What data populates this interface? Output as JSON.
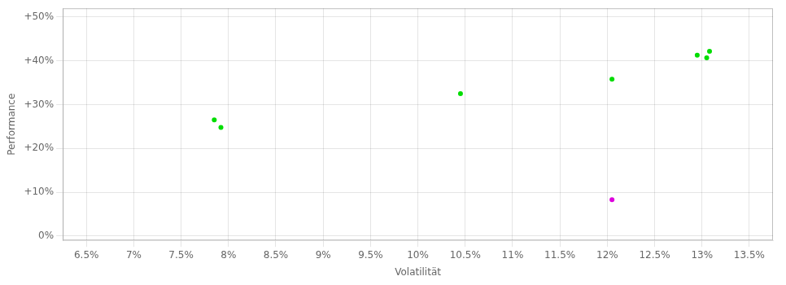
{
  "chart_data": {
    "type": "scatter",
    "xlabel": "Volatilität",
    "ylabel": "Performance",
    "xlim": [
      0.0625,
      0.1375
    ],
    "ylim": [
      -0.01,
      0.52
    ],
    "xticks": [
      {
        "value": 0.065,
        "label": "6.5%"
      },
      {
        "value": 0.07,
        "label": "7%"
      },
      {
        "value": 0.075,
        "label": "7.5%"
      },
      {
        "value": 0.08,
        "label": "8%"
      },
      {
        "value": 0.085,
        "label": "8.5%"
      },
      {
        "value": 0.09,
        "label": "9%"
      },
      {
        "value": 0.095,
        "label": "9.5%"
      },
      {
        "value": 0.1,
        "label": "10%"
      },
      {
        "value": 0.105,
        "label": "10.5%"
      },
      {
        "value": 0.11,
        "label": "11%"
      },
      {
        "value": 0.115,
        "label": "11.5%"
      },
      {
        "value": 0.12,
        "label": "12%"
      },
      {
        "value": 0.125,
        "label": "12.5%"
      },
      {
        "value": 0.13,
        "label": "13%"
      },
      {
        "value": 0.135,
        "label": "13.5%"
      }
    ],
    "yticks": [
      {
        "value": 0.0,
        "label": "0%"
      },
      {
        "value": 0.1,
        "label": "+10%"
      },
      {
        "value": 0.2,
        "label": "+20%"
      },
      {
        "value": 0.3,
        "label": "+30%"
      },
      {
        "value": 0.4,
        "label": "+40%"
      },
      {
        "value": 0.5,
        "label": "+50%"
      }
    ],
    "grid": true,
    "series": [
      {
        "color": "#00dd00",
        "x": [
          0.0785,
          0.0792,
          0.1045,
          0.1205,
          0.1295,
          0.1305,
          0.1308
        ],
        "values": [
          0.265,
          0.248,
          0.325,
          0.358,
          0.413,
          0.407,
          0.422
        ]
      },
      {
        "color": "#dd00dd",
        "x": [
          0.1205
        ],
        "values": [
          0.083
        ]
      }
    ]
  }
}
